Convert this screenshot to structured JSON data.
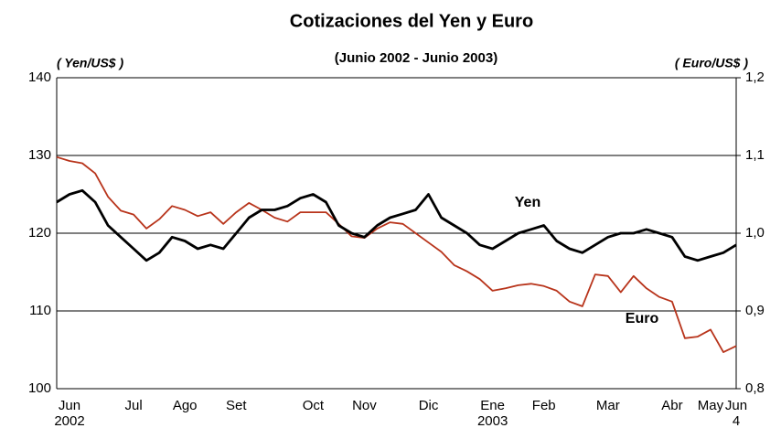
{
  "chart_data": {
    "type": "line",
    "title": "Cotizaciones del Yen y Euro",
    "subtitle": "(Junio 2002 - Junio 2003)",
    "ylabel": "( Yen/US$ )",
    "y2label": "( Euro/US$ )",
    "annotations": [
      "Yen",
      "Euro"
    ],
    "categories": [
      null,
      "Jun",
      null,
      null,
      null,
      null,
      "Jul",
      null,
      null,
      null,
      "Ago",
      null,
      null,
      null,
      "Set",
      null,
      null,
      null,
      null,
      null,
      "Oct",
      null,
      null,
      null,
      "Nov",
      null,
      null,
      null,
      null,
      "Dic",
      null,
      null,
      null,
      null,
      "Ene",
      null,
      null,
      null,
      "Feb",
      null,
      null,
      null,
      null,
      "Mar",
      null,
      null,
      null,
      null,
      "Abr",
      null,
      null,
      "May",
      null,
      "Jun"
    ],
    "category_sublabels": [
      null,
      "2002",
      null,
      null,
      null,
      null,
      null,
      null,
      null,
      null,
      null,
      null,
      null,
      null,
      null,
      null,
      null,
      null,
      null,
      null,
      null,
      null,
      null,
      null,
      null,
      null,
      null,
      null,
      null,
      null,
      null,
      null,
      null,
      null,
      "2003",
      null,
      null,
      null,
      null,
      null,
      null,
      null,
      null,
      null,
      null,
      null,
      null,
      null,
      null,
      null,
      null,
      null,
      null,
      "4"
    ],
    "series": [
      {
        "name": "Yen",
        "color": "#000000",
        "values": [
          124,
          125,
          125.5,
          124,
          121,
          119.5,
          118,
          116.5,
          117.5,
          119.5,
          119,
          118,
          118.5,
          118,
          120,
          122,
          123,
          123,
          123.5,
          124.5,
          125,
          124,
          121,
          120,
          119.5,
          121,
          122,
          122.5,
          123,
          125,
          122,
          121,
          120,
          118.5,
          118,
          119,
          120,
          120.5,
          121,
          119,
          118,
          117.5,
          118.5,
          119.5,
          120,
          120,
          120.5,
          120,
          119.5,
          117,
          116.5,
          117,
          117.5,
          118.5
        ]
      },
      {
        "name": "Euro",
        "color": "#b8341b",
        "axis": "y2",
        "values": [
          1.098,
          1.093,
          1.09,
          1.077,
          1.047,
          1.029,
          1.024,
          1.006,
          1.018,
          1.035,
          1.03,
          1.022,
          1.027,
          1.012,
          1.027,
          1.039,
          1.03,
          1.02,
          1.015,
          1.027,
          1.027,
          1.027,
          1.012,
          0.996,
          0.994,
          1.006,
          1.014,
          1.012,
          1.0,
          0.988,
          0.976,
          0.959,
          0.951,
          0.941,
          0.926,
          0.929,
          0.933,
          0.935,
          0.932,
          0.926,
          0.912,
          0.906,
          0.947,
          0.945,
          0.924,
          0.945,
          0.929,
          0.918,
          0.912,
          0.865,
          0.867,
          0.876,
          0.847,
          0.855
        ]
      }
    ],
    "ylim": [
      100,
      140
    ],
    "yticks": [
      100,
      110,
      120,
      130,
      140
    ],
    "y2lim": [
      0.8,
      1.2
    ],
    "y2ticks": [
      {
        "value": 0.8,
        "label": "0,8"
      },
      {
        "value": 0.9,
        "label": "0,9"
      },
      {
        "value": 1.0,
        "label": "1,0"
      },
      {
        "value": 1.1,
        "label": "1,1"
      },
      {
        "value": 1.2,
        "label": "1,2"
      }
    ],
    "grid": true
  }
}
